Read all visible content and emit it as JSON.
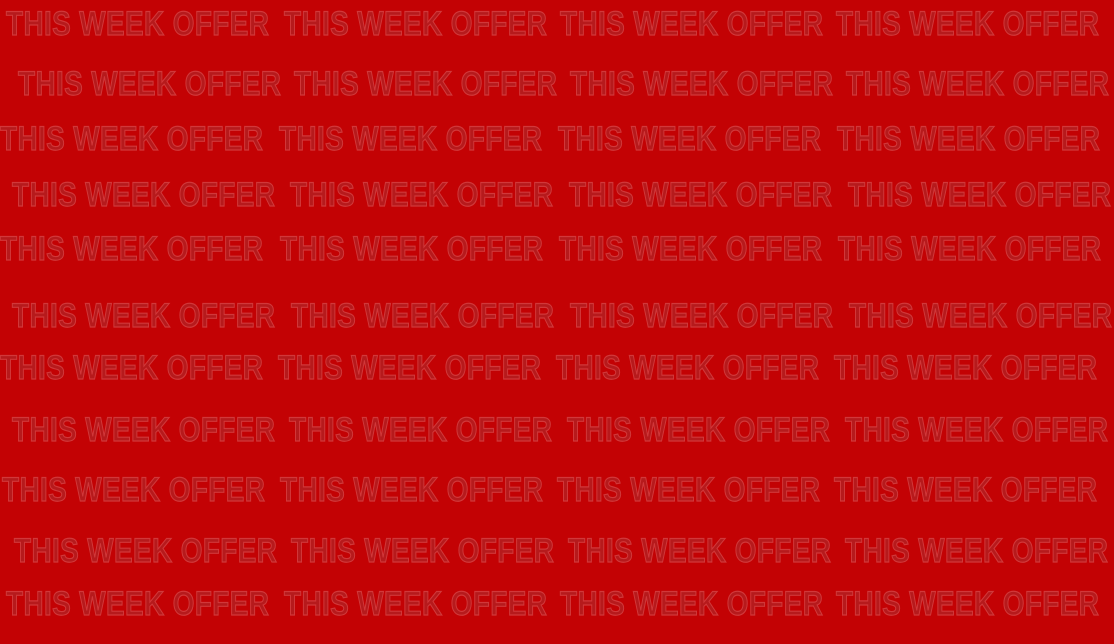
{
  "background_color": "#c30204",
  "text_color": "#b61a1c",
  "outline_color": "#d1383a",
  "pattern_text": "THIS WEEK OFFER",
  "rows": [
    [
      "THIS WEEK OFFER",
      "THIS WEEK OFFER",
      "THIS WEEK OFFER",
      "THIS WEEK OFFER"
    ],
    [
      "THIS WEEK OFFER",
      "THIS WEEK OFFER",
      "THIS WEEK OFFER",
      "THIS WEEK OFFER"
    ],
    [
      "THIS WEEK OFFER",
      "THIS WEEK OFFER",
      "THIS WEEK OFFER",
      "THIS WEEK OFFER"
    ],
    [
      "THIS WEEK OFFER",
      "THIS WEEK OFFER",
      "THIS WEEK OFFER",
      "THIS WEEK OFFER"
    ],
    [
      "THIS WEEK OFFER",
      "THIS WEEK OFFER",
      "THIS WEEK OFFER",
      "THIS WEEK OFFER"
    ],
    [
      "THIS WEEK OFFER",
      "THIS WEEK OFFER",
      "THIS WEEK OFFER",
      "THIS WEEK OFFER"
    ],
    [
      "THIS WEEK OFFER",
      "THIS WEEK OFFER",
      "THIS WEEK OFFER",
      "THIS WEEK OFFER"
    ],
    [
      "THIS WEEK OFFER",
      "THIS WEEK OFFER",
      "THIS WEEK OFFER",
      "THIS WEEK OFFER"
    ],
    [
      "THIS WEEK OFFER",
      "THIS WEEK OFFER",
      "THIS WEEK OFFER",
      "THIS WEEK OFFER"
    ],
    [
      "THIS WEEK OFFER",
      "THIS WEEK OFFER",
      "THIS WEEK OFFER",
      "THIS WEEK OFFER"
    ],
    [
      "THIS WEEK OFFER",
      "THIS WEEK OFFER",
      "THIS WEEK OFFER",
      "THIS WEEK OFFER"
    ]
  ]
}
